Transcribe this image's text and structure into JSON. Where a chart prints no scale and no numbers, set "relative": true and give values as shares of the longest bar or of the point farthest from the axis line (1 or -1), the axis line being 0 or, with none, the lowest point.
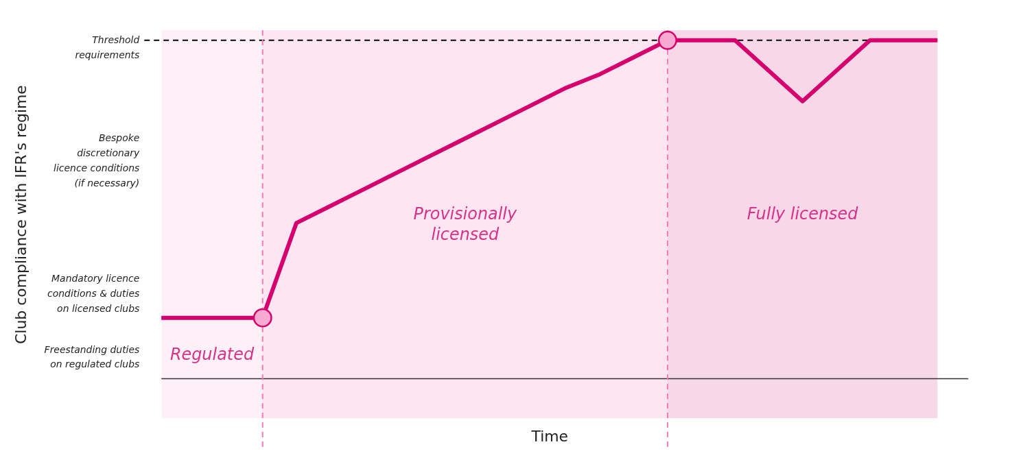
{
  "chart_data": {
    "type": "line",
    "relative": true,
    "xlabel": "Time",
    "grid": false,
    "categories": [
      null,
      null,
      null,
      null,
      null,
      null,
      null,
      null,
      null,
      null,
      null,
      null,
      null,
      null,
      null,
      null,
      null,
      null,
      null,
      null,
      null,
      null,
      null,
      null
    ],
    "series": [
      {
        "color": "#d5006d",
        "values": [
          0.18,
          0.18,
          0.18,
          0.18,
          0.46,
          0.51,
          0.56,
          0.61,
          0.66,
          0.71,
          0.76,
          0.81,
          0.86,
          0.9,
          0.95,
          1.0,
          1.0,
          1.0,
          0.91,
          0.82,
          0.91,
          1.0,
          1.0,
          1.0
        ]
      }
    ],
    "ref_lines": [
      {
        "axis": "y",
        "value": 1.0,
        "color": "#000000",
        "line_style": "dashed"
      }
    ],
    "annotations": [
      "Club compliance with IFR's regime",
      "Threshold requirements",
      "Bespoke discretionary licence conditions (if necessary)",
      "Mandatory licence conditions & duties on licensed clubs",
      "Freestanding duties on regulated clubs",
      "Regulated",
      "Provisionally licensed",
      "Fully licensed"
    ]
  }
}
